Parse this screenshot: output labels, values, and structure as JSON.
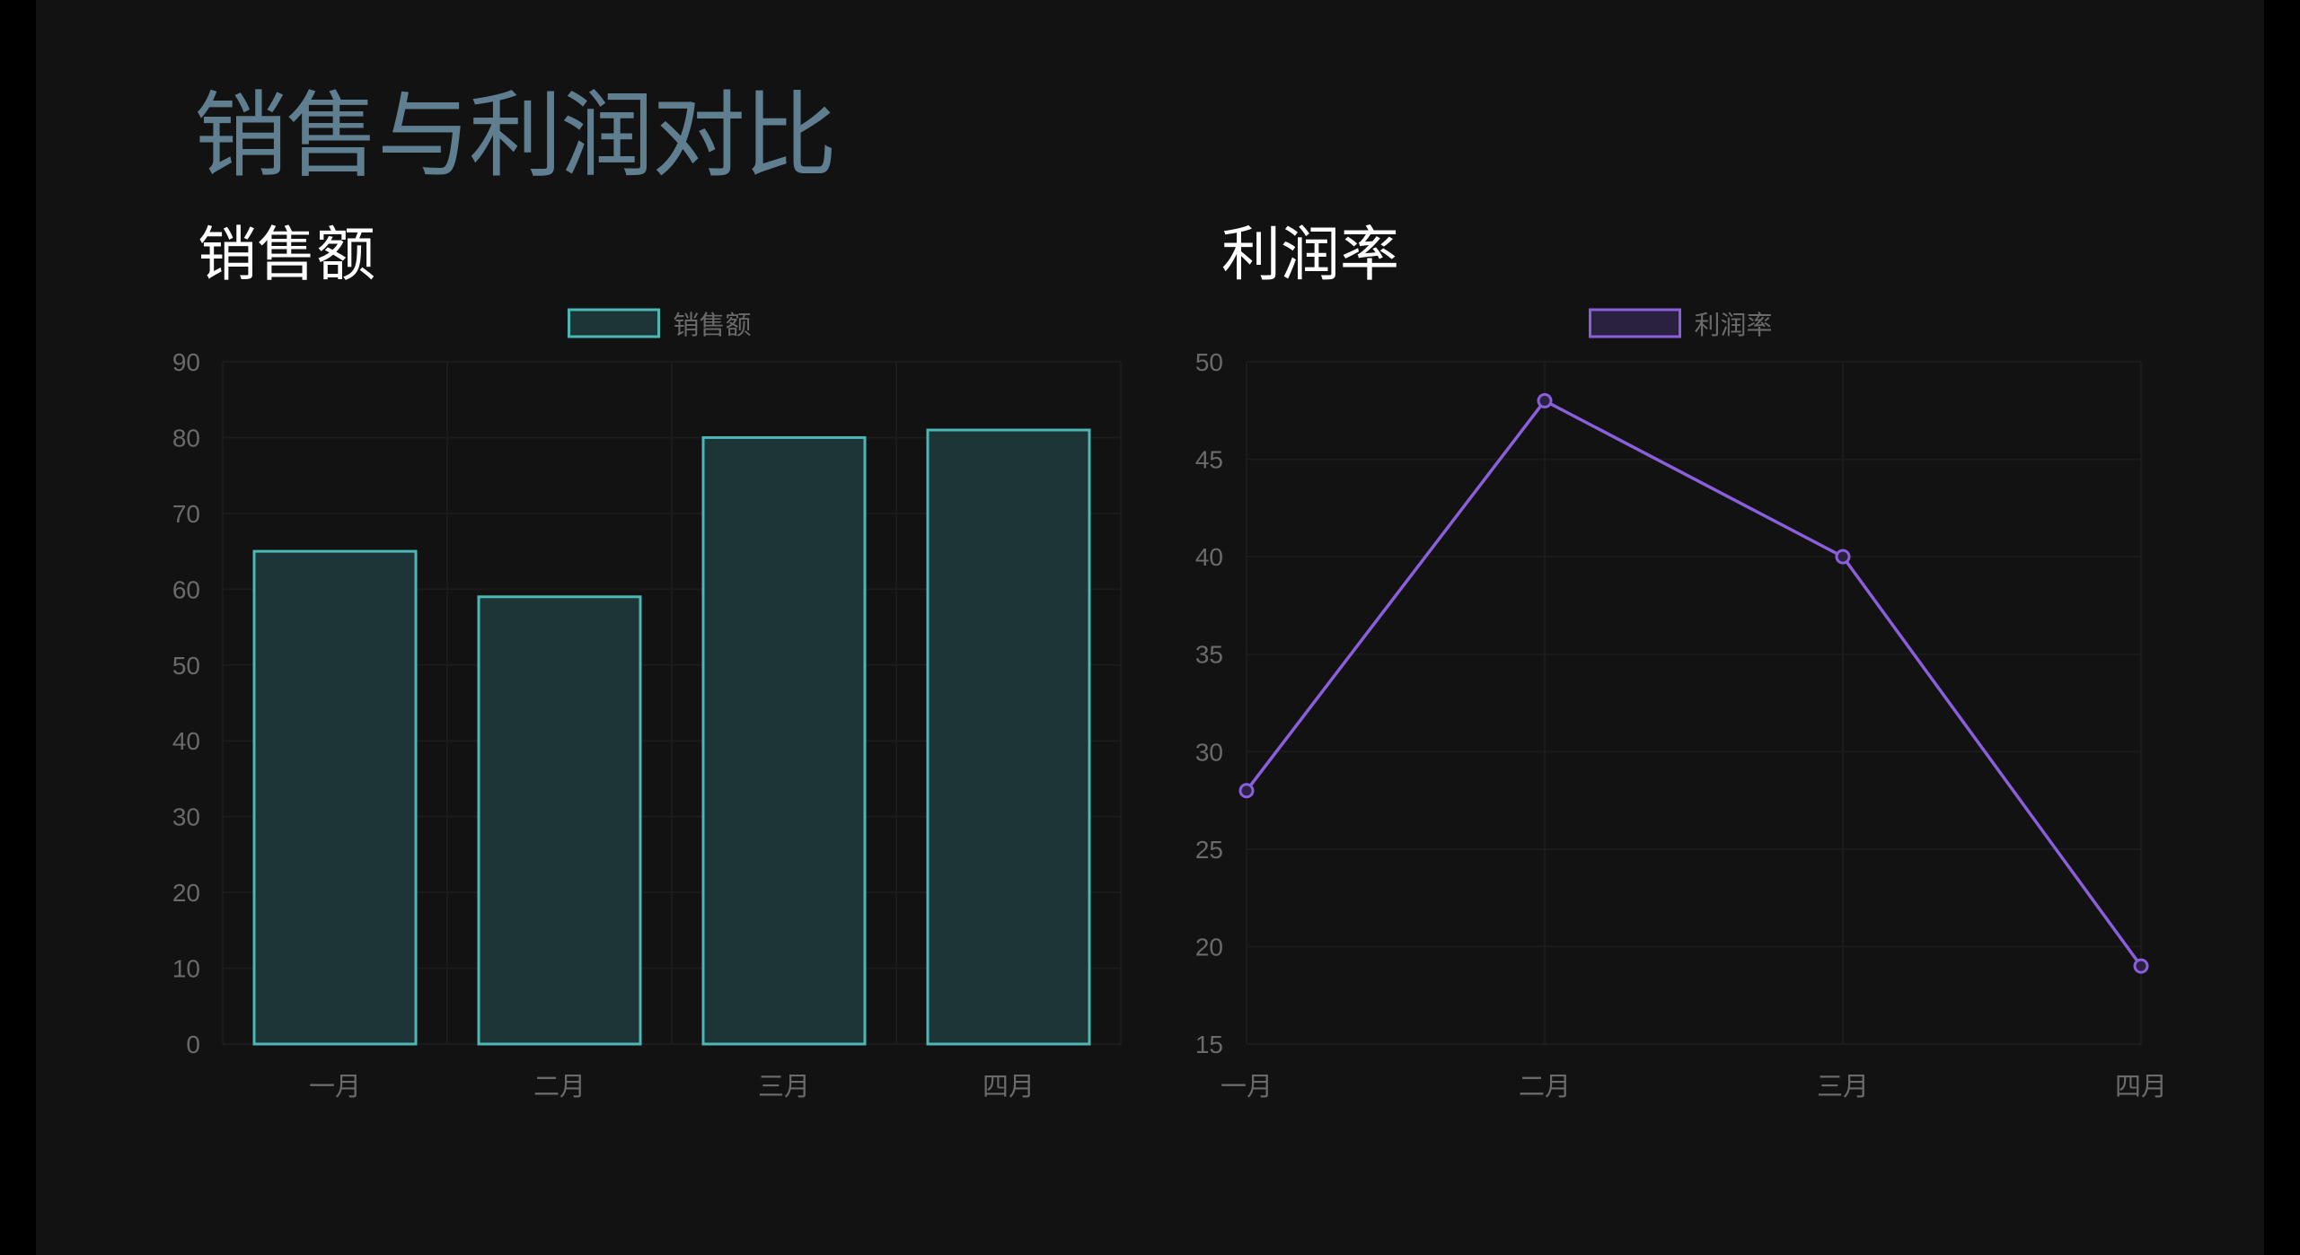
{
  "page": {
    "title": "销售与利润对比",
    "colors": {
      "background": "#121212",
      "title": "#5f7e8f",
      "subtitle": "#ffffff",
      "tick": "#6a6a6a",
      "grid": "#1b1b1b"
    }
  },
  "charts": [
    {
      "title": "销售额"
    },
    {
      "title": "利润率"
    }
  ],
  "chart_data": [
    {
      "type": "bar",
      "categories": [
        "一月",
        "二月",
        "三月",
        "四月"
      ],
      "series": [
        {
          "name": "销售额",
          "values": [
            65,
            59,
            80,
            81
          ],
          "color": "#4bb8b6",
          "fill": "#1e3537"
        }
      ],
      "ylim": [
        0,
        90
      ],
      "yticks": [
        0,
        10,
        20,
        30,
        40,
        50,
        60,
        70,
        80,
        90
      ],
      "grid": true,
      "legend": "top-center"
    },
    {
      "type": "line",
      "categories": [
        "一月",
        "二月",
        "三月",
        "四月"
      ],
      "series": [
        {
          "name": "利润率",
          "values": [
            28,
            48,
            40,
            19
          ],
          "color": "#8a5fdb",
          "fill": "#2a2040"
        }
      ],
      "ylim": [
        15,
        50
      ],
      "yticks": [
        15,
        20,
        25,
        30,
        35,
        40,
        45,
        50
      ],
      "grid": true,
      "legend": "top-center"
    }
  ]
}
